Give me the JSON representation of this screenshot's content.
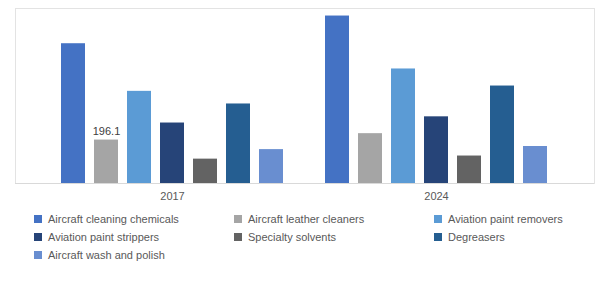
{
  "chart_data": {
    "type": "bar",
    "categories": [
      "2017",
      "2024"
    ],
    "series": [
      {
        "name": "Aircraft cleaning chemicals",
        "color": "#4472c4",
        "values": [
          631,
          756
        ]
      },
      {
        "name": "Aircraft leather cleaners",
        "color": "#a5a5a5",
        "values": [
          196.1,
          225
        ],
        "value_labels": [
          "196.1",
          null
        ]
      },
      {
        "name": "Aviation paint removers",
        "color": "#5b9bd5",
        "values": [
          416,
          517
        ]
      },
      {
        "name": "Aviation paint strippers",
        "color": "#264478",
        "values": [
          273,
          301
        ]
      },
      {
        "name": "Specialty solvents",
        "color": "#636363",
        "values": [
          110,
          124
        ]
      },
      {
        "name": "Degreasers",
        "color": "#255e91",
        "values": [
          359,
          440
        ]
      },
      {
        "name": "Aircraft wash and polish",
        "color": "#698ed0",
        "values": [
          153,
          167
        ]
      }
    ],
    "ylim": [
      0,
      790
    ],
    "yticks": [],
    "tick_labels": "x",
    "legend": "bottom"
  }
}
